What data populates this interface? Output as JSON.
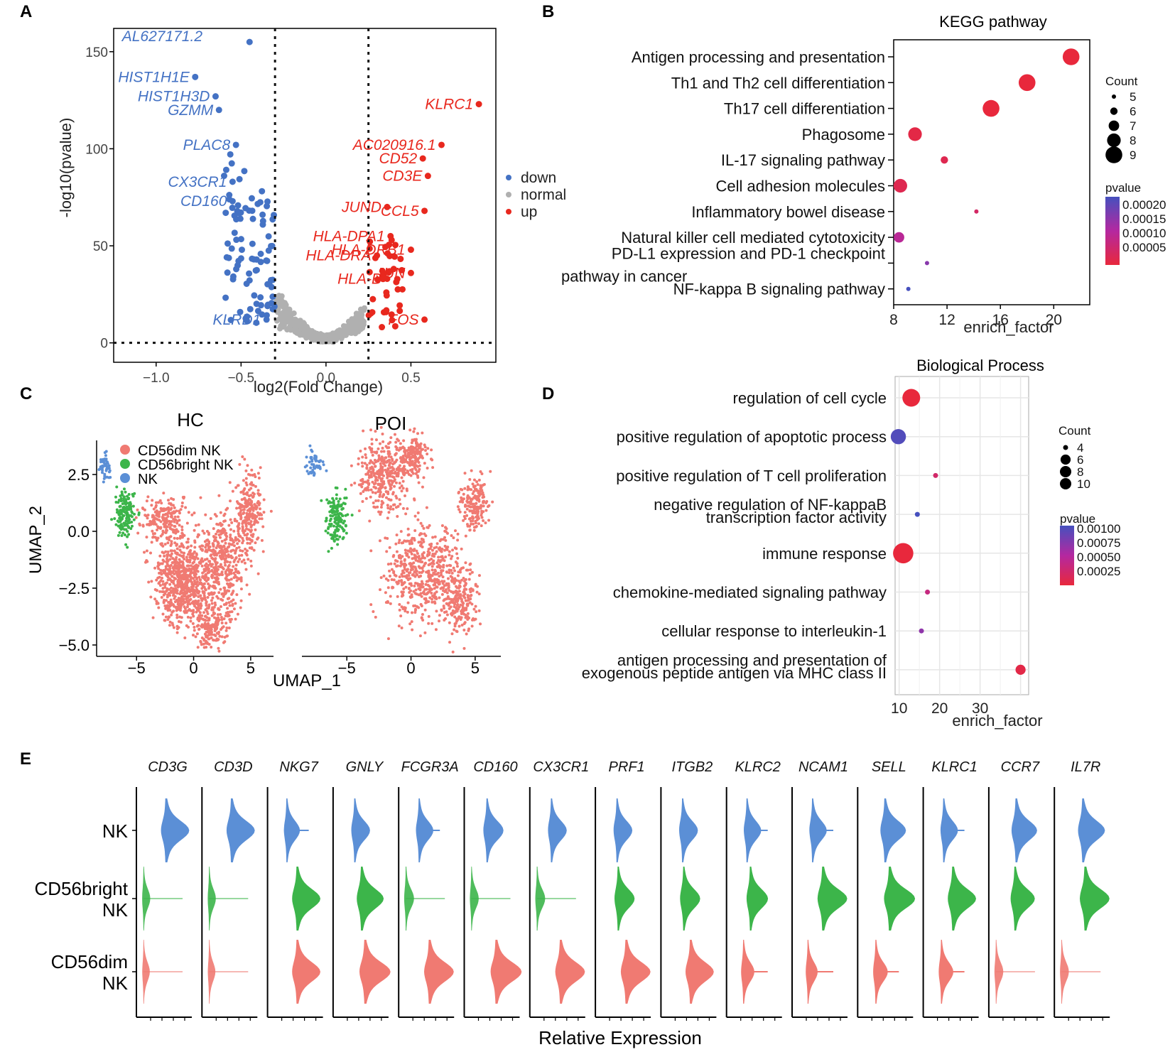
{
  "chart_data": [
    {
      "panel": "A",
      "type": "scatter",
      "title": "",
      "xlabel": "log2(Fold Change)",
      "ylabel": "-log10(pvalue)",
      "xlim": [
        -1.25,
        1.0
      ],
      "ylim": [
        -10,
        162
      ],
      "x_ticks": [
        "-1.0",
        "-0.5",
        "0.0",
        "0.5"
      ],
      "y_ticks": [
        "0",
        "50",
        "100",
        "150"
      ],
      "thresholds": {
        "x": [
          -0.3,
          0.25
        ],
        "y": 0
      },
      "legend": [
        {
          "label": "down",
          "color": "#4472c4"
        },
        {
          "label": "normal",
          "color": "#b0b0b0"
        },
        {
          "label": "up",
          "color": "#e8281e"
        }
      ],
      "labels_down": [
        {
          "text": "AL627171.2",
          "x": -0.45,
          "y": 155
        },
        {
          "text": "HIST1H1E",
          "x": -0.77,
          "y": 137
        },
        {
          "text": "HIST1H3D",
          "x": -0.65,
          "y": 127
        },
        {
          "text": "GZMM",
          "x": -0.63,
          "y": 120
        },
        {
          "text": "PLAC8",
          "x": -0.53,
          "y": 102
        },
        {
          "text": "CX3CR1",
          "x": -0.55,
          "y": 83
        },
        {
          "text": "CD160",
          "x": -0.55,
          "y": 73
        },
        {
          "text": "KLRD1",
          "x": -0.35,
          "y": 12
        }
      ],
      "labels_up": [
        {
          "text": "KLRC1",
          "x": 0.9,
          "y": 123
        },
        {
          "text": "AC020916.1",
          "x": 0.68,
          "y": 102
        },
        {
          "text": "CD52",
          "x": 0.57,
          "y": 95
        },
        {
          "text": "CD3E",
          "x": 0.6,
          "y": 86
        },
        {
          "text": "JUND",
          "x": 0.36,
          "y": 70
        },
        {
          "text": "CCL5",
          "x": 0.58,
          "y": 68
        },
        {
          "text": "HLA-DPA1",
          "x": 0.38,
          "y": 55
        },
        {
          "text": "HLA-DRB1",
          "x": 0.5,
          "y": 48
        },
        {
          "text": "HLA-DRA",
          "x": 0.3,
          "y": 45
        },
        {
          "text": "JUN",
          "x": 0.5,
          "y": 36
        },
        {
          "text": "HLA-B",
          "x": 0.36,
          "y": 33
        },
        {
          "text": "FOS",
          "x": 0.58,
          "y": 12
        }
      ]
    },
    {
      "panel": "B",
      "type": "scatter",
      "title": "KEGG pathway",
      "xlabel": "enrich_factor",
      "x_ticks": [
        "8",
        "12",
        "16",
        "20"
      ],
      "xlim": [
        8,
        22.7
      ],
      "terms": [
        {
          "name": "Antigen processing and presentation",
          "x": 21.3,
          "count": 9,
          "pvalue": 1e-05
        },
        {
          "name": "Th1 and Th2 cell differentiation",
          "x": 18.0,
          "count": 9,
          "pvalue": 1e-05
        },
        {
          "name": "Th17 cell differentiation",
          "x": 15.3,
          "count": 9,
          "pvalue": 1e-05
        },
        {
          "name": "Phagosome",
          "x": 9.6,
          "count": 8,
          "pvalue": 2e-05
        },
        {
          "name": "IL-17 signaling pathway",
          "x": 11.8,
          "count": 6,
          "pvalue": 3e-05
        },
        {
          "name": "Cell adhesion molecules",
          "x": 8.5,
          "count": 8,
          "pvalue": 3e-05
        },
        {
          "name": "Inflammatory bowel disease",
          "x": 14.2,
          "count": 5,
          "pvalue": 5e-05
        },
        {
          "name": "Natural killer cell mediated cytotoxicity",
          "x": 8.4,
          "count": 7,
          "pvalue": 0.0001
        },
        {
          "name_lines": [
            "PD-L1 expression and PD-1 checkpoint",
            "pathway in cancer"
          ],
          "x": 10.5,
          "count": 5,
          "pvalue": 0.00015
        },
        {
          "name": "NF-kappa B signaling pathway",
          "x": 9.1,
          "count": 5,
          "pvalue": 0.00021
        }
      ],
      "count_legend": {
        "title": "Count",
        "values": [
          "5",
          "6",
          "7",
          "8",
          "9"
        ]
      },
      "pvalue_legend": {
        "title": "pvalue",
        "values": [
          "0.00020",
          "0.00015",
          "0.00010",
          "0.00005"
        ]
      }
    },
    {
      "panel": "C",
      "type": "scatter",
      "subplots": [
        "HC",
        "POI"
      ],
      "xlabel": "UMAP_1",
      "ylabel": "UMAP_2",
      "x_ticks": [
        "-5",
        "0",
        "5"
      ],
      "y_ticks": [
        "2.5",
        "0.0",
        "-2.5",
        "-5.0"
      ],
      "legend": [
        {
          "label": "CD56dim NK",
          "color": "#f07a72"
        },
        {
          "label": "CD56bright NK",
          "color": "#3cb54a"
        },
        {
          "label": "NK",
          "color": "#5b8fd6"
        }
      ]
    },
    {
      "panel": "D",
      "type": "scatter",
      "title": "Biological Process",
      "xlabel": "enrich_factor",
      "x_ticks": [
        "10",
        "20",
        "30"
      ],
      "xlim": [
        9,
        42
      ],
      "terms": [
        {
          "name": "regulation of cell cycle",
          "x": 13,
          "count": 9,
          "pvalue": 0.0001
        },
        {
          "name": "positive regulation of apoptotic process",
          "x": 9.8,
          "count": 8,
          "pvalue": 0.00095
        },
        {
          "name": "positive regulation of T cell proliferation",
          "x": 19,
          "count": 4,
          "pvalue": 0.0003
        },
        {
          "name_lines": [
            "negative regulation of NF-kappaB",
            "transcription factor activity"
          ],
          "x": 14.5,
          "count": 4,
          "pvalue": 0.001
        },
        {
          "name": "immune response",
          "x": 11,
          "count": 10,
          "pvalue": 0.0001
        },
        {
          "name": "chemokine-mediated signaling pathway",
          "x": 17,
          "count": 4,
          "pvalue": 0.0004
        },
        {
          "name": "cellular response to interleukin-1",
          "x": 15.5,
          "count": 4,
          "pvalue": 0.0007
        },
        {
          "name_lines": [
            "antigen processing and presentation of",
            "exogenous peptide antigen via MHC class II"
          ],
          "x": 40,
          "count": 6,
          "pvalue": 0.00015
        }
      ],
      "count_legend": {
        "title": "Count",
        "values": [
          "4",
          "6",
          "8",
          "10"
        ]
      },
      "pvalue_legend": {
        "title": "pvalue",
        "values": [
          "0.00100",
          "0.00075",
          "0.00050",
          "0.00025"
        ]
      }
    },
    {
      "panel": "E",
      "type": "violin",
      "xlabel": "Relative Expression",
      "genes": [
        "CD3G",
        "CD3D",
        "NKG7",
        "GNLY",
        "FCGR3A",
        "CD160",
        "CX3CR1",
        "PRF1",
        "ITGB2",
        "KLRC2",
        "NCAM1",
        "SELL",
        "KLRC1",
        "CCR7",
        "IL7R"
      ],
      "groups": [
        {
          "label_lines": [
            "NK"
          ],
          "color": "#5b8fd6"
        },
        {
          "label_lines": [
            "CD56bright",
            "NK"
          ],
          "color": "#3cb54a"
        },
        {
          "label_lines": [
            "CD56dim",
            "NK"
          ],
          "color": "#f07a72"
        }
      ],
      "widths": [
        [
          0.85,
          0.05,
          0.03
        ],
        [
          0.85,
          0.05,
          0.03
        ],
        [
          0.4,
          0.85,
          0.85
        ],
        [
          0.5,
          0.8,
          0.95
        ],
        [
          0.45,
          0.12,
          0.9
        ],
        [
          0.55,
          0.08,
          0.95
        ],
        [
          0.5,
          0.12,
          0.9
        ],
        [
          0.5,
          0.55,
          0.9
        ],
        [
          0.5,
          0.55,
          0.85
        ],
        [
          0.45,
          0.6,
          0.3
        ],
        [
          0.45,
          0.9,
          0.25
        ],
        [
          0.75,
          0.95,
          0.35
        ],
        [
          0.45,
          0.85,
          0.35
        ],
        [
          0.75,
          0.7,
          0.08
        ],
        [
          0.8,
          0.9,
          0.08
        ]
      ]
    }
  ]
}
